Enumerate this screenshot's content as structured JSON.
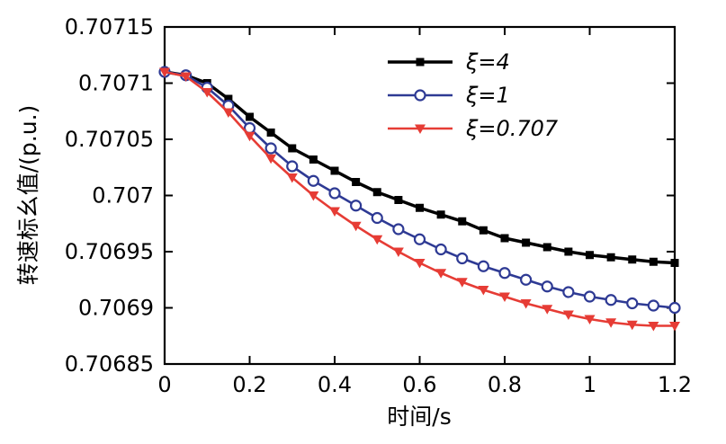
{
  "chart_data": {
    "type": "line",
    "title": "",
    "xlabel": "时间/s",
    "ylabel": "转速标幺值/(p.u.)",
    "xlim": [
      0,
      1.2
    ],
    "ylim": [
      0.70685,
      0.70715
    ],
    "x_ticks": [
      "0",
      "0.2",
      "0.4",
      "0.6",
      "0.8",
      "1",
      "1.2"
    ],
    "y_ticks": [
      "0.70685",
      "0.7069",
      "0.70695",
      "0.707",
      "0.70705",
      "0.7071",
      "0.70715"
    ],
    "grid": false,
    "legend_position": "inside-upper-center",
    "x": [
      0,
      0.05,
      0.1,
      0.15,
      0.2,
      0.25,
      0.3,
      0.35,
      0.4,
      0.45,
      0.5,
      0.55,
      0.6,
      0.65,
      0.7,
      0.75,
      0.8,
      0.85,
      0.9,
      0.95,
      1,
      1.05,
      1.1,
      1.15,
      1.2
    ],
    "series": [
      {
        "name": "ξ=4",
        "color": "#000000",
        "marker": "square",
        "line_width": 3.5,
        "values": [
          0.70711,
          0.707107,
          0.7071,
          0.707086,
          0.70707,
          0.707056,
          0.707042,
          0.707032,
          0.707022,
          0.707012,
          0.707003,
          0.706996,
          0.706989,
          0.706983,
          0.706977,
          0.706969,
          0.706962,
          0.706958,
          0.706954,
          0.70695,
          0.706947,
          0.706945,
          0.706943,
          0.706941,
          0.70694
        ]
      },
      {
        "name": "ξ=1",
        "color": "#2e3a94",
        "marker": "circle-open",
        "line_width": 2.6,
        "values": [
          0.70711,
          0.707107,
          0.707096,
          0.70708,
          0.70706,
          0.707042,
          0.707026,
          0.707013,
          0.707002,
          0.706991,
          0.70698,
          0.70697,
          0.706961,
          0.706952,
          0.706944,
          0.706937,
          0.706931,
          0.706925,
          0.706919,
          0.706914,
          0.70691,
          0.706907,
          0.706904,
          0.706902,
          0.7069
        ]
      },
      {
        "name": "ξ=0.707",
        "color": "#e63c35",
        "marker": "triangle-down",
        "line_width": 2.6,
        "values": [
          0.70711,
          0.707106,
          0.707092,
          0.707074,
          0.707053,
          0.707033,
          0.707016,
          0.707,
          0.706986,
          0.706973,
          0.706961,
          0.70695,
          0.70694,
          0.706931,
          0.706923,
          0.706916,
          0.70691,
          0.706904,
          0.706899,
          0.706894,
          0.70689,
          0.706887,
          0.706885,
          0.706884,
          0.706884
        ]
      }
    ]
  }
}
